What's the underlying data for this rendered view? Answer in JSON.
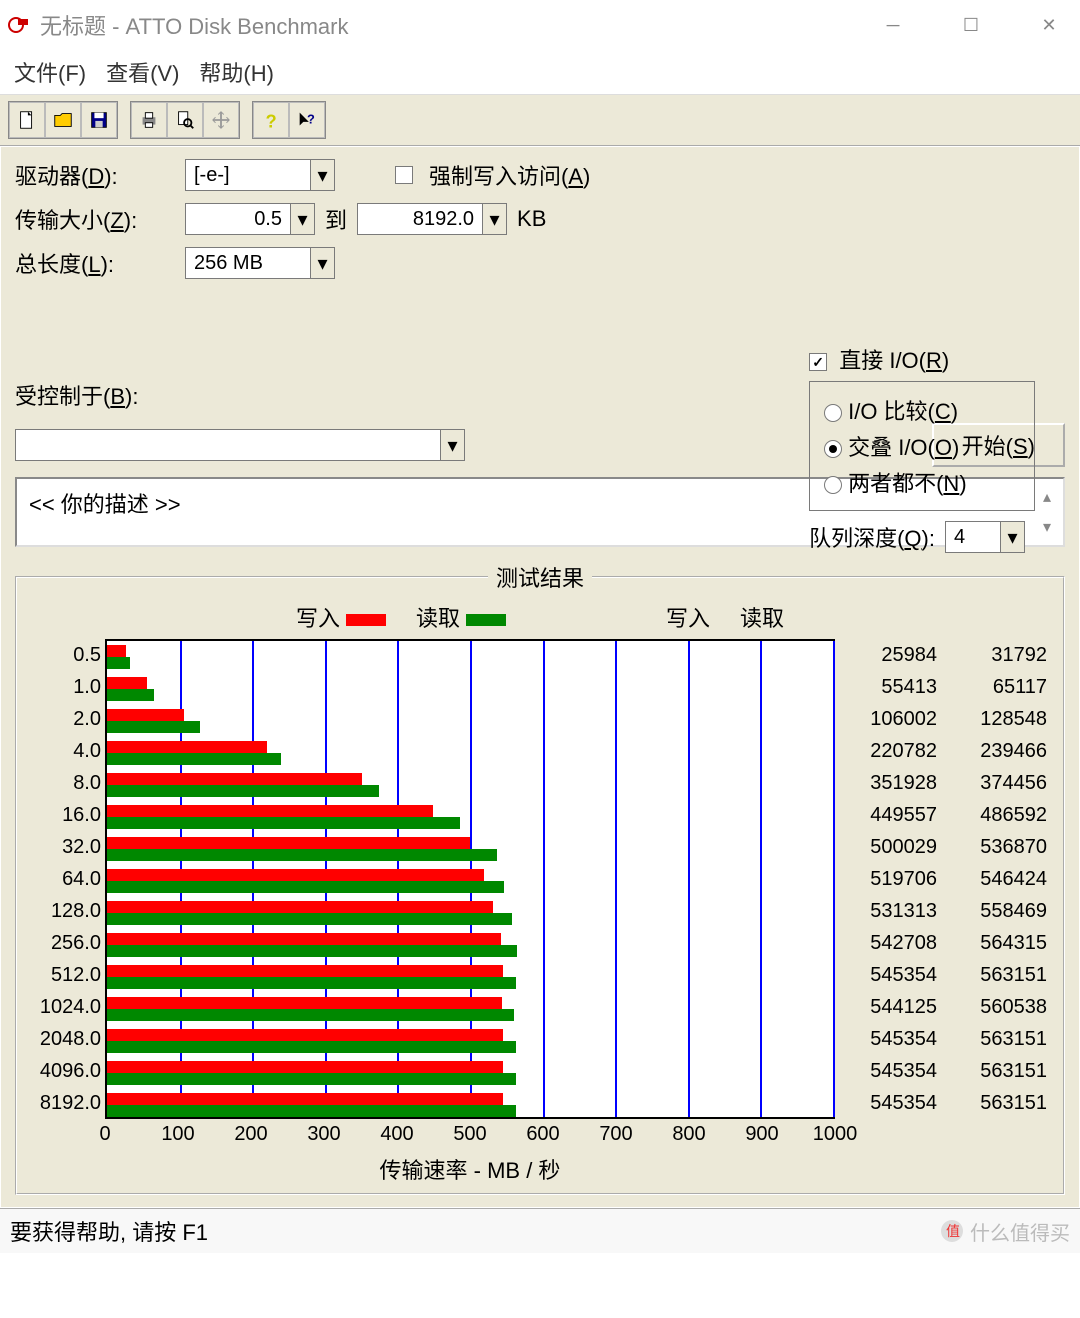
{
  "window": {
    "title": "无标题 - ATTO Disk Benchmark"
  },
  "menu": {
    "file": "文件(F)",
    "view": "查看(V)",
    "help": "帮助(H)"
  },
  "config": {
    "drive_label": "驱动器(D):",
    "drive_value": "[-e-]",
    "transfer_label": "传输大小(Z):",
    "transfer_from": "0.5",
    "transfer_to_label": "到",
    "transfer_to": "8192.0",
    "transfer_unit": "KB",
    "length_label": "总长度(L):",
    "length_value": "256 MB",
    "force_write_label": "强制写入访问(A)",
    "force_write_checked": false,
    "direct_io_label": "直接 I/O(R)",
    "direct_io_checked": true,
    "io_compare_label": "I/O 比较(C)",
    "overlap_io_label": "交叠 I/O(O)",
    "neither_label": "两者都不(N)",
    "io_mode_selected": "overlap",
    "queue_label": "队列深度(Q):",
    "queue_value": "4",
    "controlled_label": "受控制于(B):",
    "start_label": "开始(S)",
    "description_text": "<<  你的描述   >>"
  },
  "results": {
    "title": "测试结果",
    "write_label": "写入",
    "read_label": "读取",
    "x_axis_label": "传输速率 - MB / 秒",
    "write_color": "#ff0000",
    "read_color": "#008800",
    "grid_color": "#0000ff",
    "x_max": 1000,
    "x_tick_step": 100,
    "x_ticks": [
      0,
      100,
      200,
      300,
      400,
      500,
      600,
      700,
      800,
      900,
      1000
    ],
    "rows": [
      {
        "size": "0.5",
        "write": 25984,
        "read": 31792
      },
      {
        "size": "1.0",
        "write": 55413,
        "read": 65117
      },
      {
        "size": "2.0",
        "write": 106002,
        "read": 128548
      },
      {
        "size": "4.0",
        "write": 220782,
        "read": 239466
      },
      {
        "size": "8.0",
        "write": 351928,
        "read": 374456
      },
      {
        "size": "16.0",
        "write": 449557,
        "read": 486592
      },
      {
        "size": "32.0",
        "write": 500029,
        "read": 536870
      },
      {
        "size": "64.0",
        "write": 519706,
        "read": 546424
      },
      {
        "size": "128.0",
        "write": 531313,
        "read": 558469
      },
      {
        "size": "256.0",
        "write": 542708,
        "read": 564315
      },
      {
        "size": "512.0",
        "write": 545354,
        "read": 563151
      },
      {
        "size": "1024.0",
        "write": 544125,
        "read": 560538
      },
      {
        "size": "2048.0",
        "write": 545354,
        "read": 563151
      },
      {
        "size": "4096.0",
        "write": 545354,
        "read": 563151
      },
      {
        "size": "8192.0",
        "write": 545354,
        "read": 563151
      }
    ]
  },
  "statusbar": {
    "text": "要获得帮助, 请按 F1",
    "watermark": "什么值得买"
  }
}
